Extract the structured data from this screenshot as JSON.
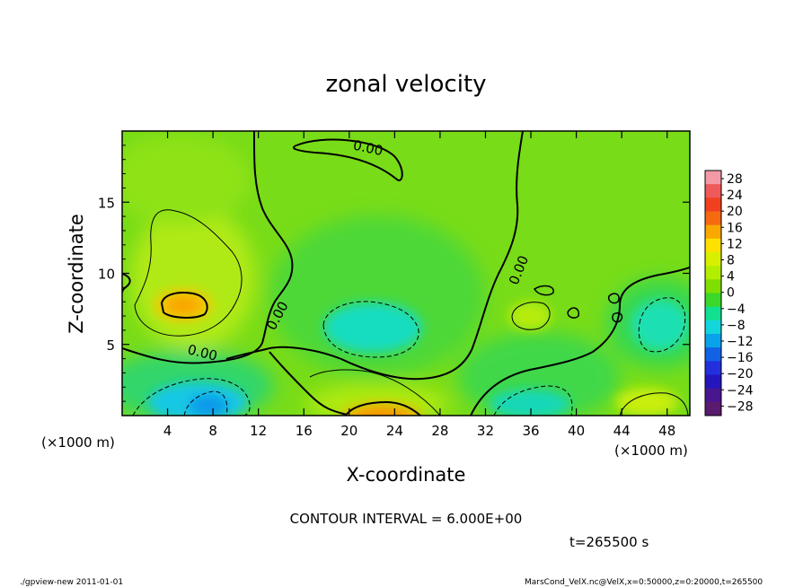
{
  "chart_data": {
    "type": "heatmap",
    "title": "zonal velocity",
    "xlabel": "X-coordinate",
    "ylabel": "Z-coordinate",
    "x_unit": "(×1000 m)",
    "z_unit": "(×1000 m)",
    "xlim": [
      0,
      50
    ],
    "ylim": [
      0,
      20
    ],
    "x_ticks": [
      "4",
      "8",
      "12",
      "16",
      "20",
      "24",
      "28",
      "32",
      "36",
      "40",
      "44",
      "48"
    ],
    "y_ticks": [
      "5",
      "10",
      "15"
    ],
    "colorbar_labels": [
      "28",
      "24",
      "20",
      "16",
      "12",
      "8",
      "4",
      "0",
      "−4",
      "−8",
      "−12",
      "−16",
      "−20",
      "−24",
      "−28"
    ],
    "colorbar_colors": [
      "#f49aa6",
      "#ee5a5a",
      "#f04020",
      "#f56a10",
      "#f9a800",
      "#ffe100",
      "#d8f000",
      "#b2ee00",
      "#7ede00",
      "#39d82a",
      "#10e090",
      "#12d6dc",
      "#0aa2ea",
      "#1262e6",
      "#2230dc",
      "#2416bc",
      "#48168e",
      "#5a1a6e"
    ],
    "contour_label": "0.00",
    "contour_interval_text": "CONTOUR INTERVAL = 6.000E+00",
    "time_text": "t=265500 s",
    "features": [
      {
        "x": 5.5,
        "z": 7.8,
        "value": 14
      },
      {
        "x": 22.5,
        "z": 0.3,
        "value": 14
      },
      {
        "x": 7,
        "z": 1.5,
        "value": -12
      },
      {
        "x": 22,
        "z": 6.5,
        "value": -8
      },
      {
        "x": 36,
        "z": 7,
        "value": 6
      },
      {
        "x": 47,
        "z": 7,
        "value": -7
      }
    ]
  },
  "footer": {
    "left": "./gpview-new   2011-01-01",
    "right": "MarsCond_VelX.nc@VelX,x=0:50000,z=0:20000,t=265500"
  }
}
